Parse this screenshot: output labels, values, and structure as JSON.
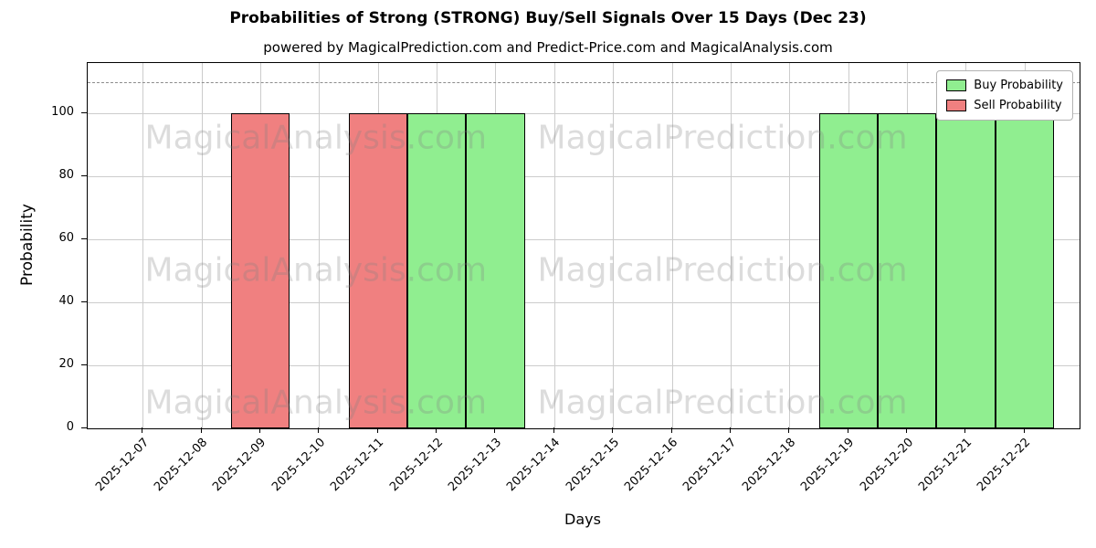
{
  "chart_data": {
    "type": "bar",
    "title": "Probabilities of Strong (STRONG) Buy/Sell Signals Over 15 Days (Dec 23)",
    "subtitle": "powered by MagicalPrediction.com and Predict-Price.com and MagicalAnalysis.com",
    "xlabel": "Days",
    "ylabel": "Probability",
    "ylim": [
      0,
      116
    ],
    "yticks": [
      0,
      20,
      40,
      60,
      80,
      100
    ],
    "threshold_line_y": 110,
    "grid": true,
    "categories": [
      "2025-12-07",
      "2025-12-08",
      "2025-12-09",
      "2025-12-10",
      "2025-12-11",
      "2025-12-12",
      "2025-12-13",
      "2025-12-14",
      "2025-12-15",
      "2025-12-16",
      "2025-12-17",
      "2025-12-18",
      "2025-12-19",
      "2025-12-20",
      "2025-12-21",
      "2025-12-22"
    ],
    "series": [
      {
        "name": "Buy Probability",
        "color": "#90ee90",
        "values": [
          0,
          0,
          0,
          0,
          0,
          100,
          100,
          0,
          0,
          0,
          0,
          0,
          100,
          100,
          100,
          100
        ]
      },
      {
        "name": "Sell Probability",
        "color": "#f08080",
        "values": [
          0,
          0,
          100,
          0,
          100,
          0,
          0,
          0,
          0,
          0,
          0,
          0,
          0,
          0,
          0,
          0
        ]
      }
    ],
    "legend": {
      "position": "upper right",
      "entries": [
        {
          "label": "Buy Probability",
          "color": "#90ee90"
        },
        {
          "label": "Sell Probability",
          "color": "#f08080"
        }
      ]
    },
    "watermarks": {
      "left": "MagicalAnalysis.com",
      "right": "MagicalPrediction.com"
    }
  }
}
